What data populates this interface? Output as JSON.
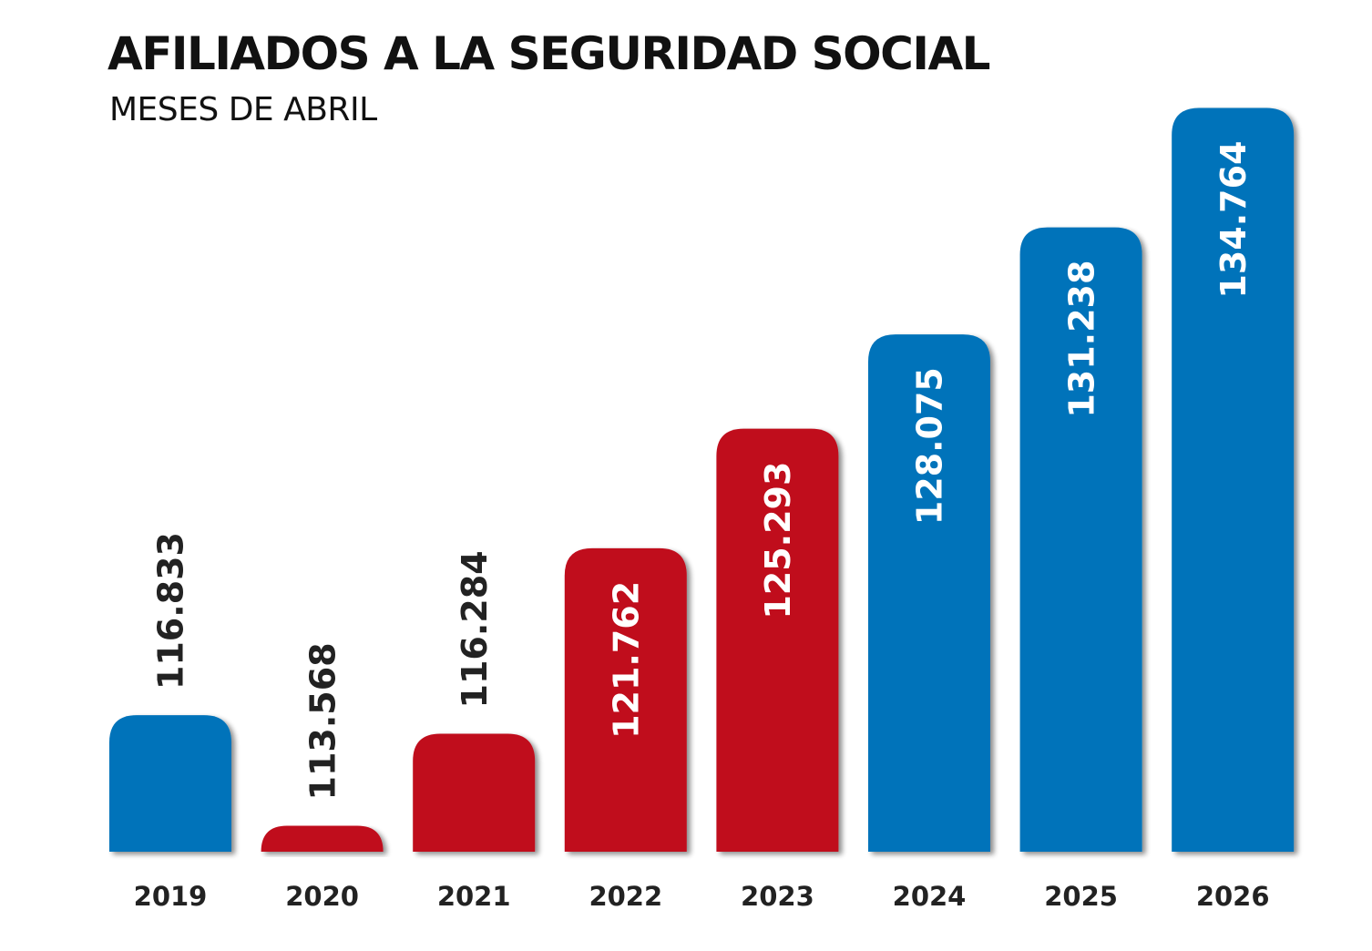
{
  "chart_data": {
    "type": "bar",
    "title": "AFILIADOS A LA SEGURIDAD SOCIAL",
    "subtitle": "MESES DE ABRIL",
    "categories": [
      "2019",
      "2020",
      "2021",
      "2022",
      "2023",
      "2024",
      "2025",
      "2026"
    ],
    "values": [
      116833,
      113568,
      116284,
      121762,
      125293,
      128075,
      131238,
      134764
    ],
    "value_labels": [
      "116.833",
      "113.568",
      "116.284",
      "121.762",
      "125.293",
      "128.075",
      "131.238",
      "134.764"
    ],
    "bar_colors": [
      "#0573ba",
      "#c00d1e",
      "#c00d1e",
      "#c00d1e",
      "#c00d1e",
      "#0573ba",
      "#0573ba",
      "#0573ba"
    ],
    "xlabel": "",
    "ylabel": "",
    "ylim": [
      112800,
      135800
    ],
    "grid": false
  },
  "colors": {
    "blue": "#0573ba",
    "red": "#c00d1e",
    "text_dark": "#222222",
    "text_light": "#ffffff",
    "shadow": "#9a9a9a"
  }
}
